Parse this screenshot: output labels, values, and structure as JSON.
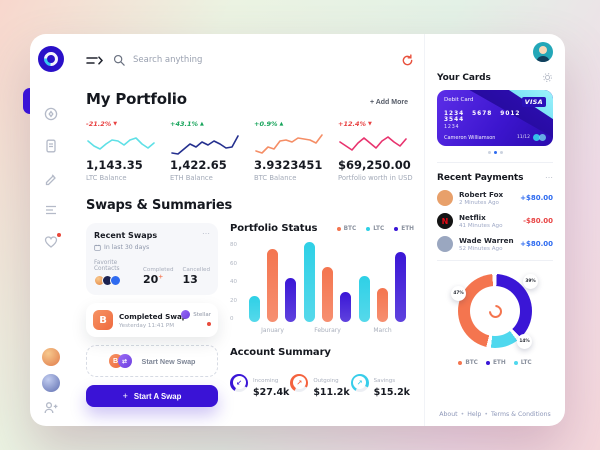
{
  "theme": {
    "accent": "#3a13d6",
    "cyan": "#2ed0e6",
    "orange": "#f4754f",
    "crimson": "#e8336e"
  },
  "topbar": {
    "search_placeholder": "Search anything"
  },
  "portfolio": {
    "title": "My Portfolio",
    "add_more_label": "+ Add More",
    "cards": [
      {
        "change": "-21.2%",
        "arrow": "▼",
        "change_color": "#e84141",
        "value": "1,143.35",
        "label": "LTC Balance",
        "spark_color": "#5fe0e6",
        "spark": "2,9 8,14 14,17 20,12 26,8 32,9 38,13 44,8 50,6 56,12 62,16 68,11"
      },
      {
        "change": "+43.1%",
        "arrow": "▲",
        "change_color": "#17a45b",
        "value": "1,422.65",
        "label": "ETH Balance",
        "spark_color": "#25308f",
        "spark": "2,21 8,22 14,17 20,12 26,15 32,10 38,13 44,9 50,12 56,16 62,15 68,4"
      },
      {
        "change": "+0.9%",
        "arrow": "▲",
        "change_color": "#17a45b",
        "value": "3.9323451",
        "label": "BTC Balance",
        "spark_color": "#f58e66",
        "spark": "2,19 8,21 14,15 20,17 26,9 32,8 38,10 44,6 50,7 56,8 62,11 68,3"
      },
      {
        "change": "+12.4%",
        "arrow": "▼",
        "change_color": "#e84141",
        "value": "$69,250.00",
        "label": "Portfolio worth in USD",
        "spark_color": "#e8336e",
        "spark": "2,10 8,14 14,18 20,11 26,6 32,11 38,16 44,9 50,5 56,10 62,14 68,7"
      }
    ]
  },
  "swaps": {
    "title": "Swaps & Summaries",
    "recent_card": {
      "title": "Recent Swaps",
      "menu": "⋯",
      "subtitle": "In last 30 days",
      "favorites_label": "Favorite Contacts",
      "stats": [
        {
          "label": "Completed",
          "value": "20",
          "suffix": "+"
        },
        {
          "label": "Cancelled",
          "value": "13",
          "suffix": ""
        }
      ]
    },
    "completed_card": {
      "title": "Completed Swap",
      "time": "Yesterday 11:41 PM",
      "network": "Stellar",
      "coin_symbol": "B"
    },
    "start_new_label": "Start New Swap",
    "pair_symbol": "B",
    "pair_symbol2": "⇄",
    "cta_plus": "+",
    "cta_label": "Start A Swap"
  },
  "account_summary": {
    "title": "Account Summary",
    "items": [
      {
        "label": "Incoming",
        "value": "$27.4k",
        "color": "#3a16d6",
        "arrow": "↙"
      },
      {
        "label": "Outgoing",
        "value": "$11.2k",
        "color": "#f4623e",
        "arrow": "↗"
      },
      {
        "label": "Savings",
        "value": "$15.2k",
        "color": "#38cdea",
        "arrow": "↗"
      }
    ]
  },
  "chart_data": [
    {
      "id": "portfolio-status",
      "type": "bar",
      "title": "Portfolio Status",
      "categories": [
        "January",
        "Feburary",
        "March"
      ],
      "series": [
        {
          "name": "LTC",
          "color": "#2ed0e6",
          "values": [
            26,
            80,
            46
          ]
        },
        {
          "name": "BTC",
          "color": "#f4754f",
          "values": [
            73,
            55,
            34
          ]
        },
        {
          "name": "ETH",
          "color": "#3a16d6",
          "values": [
            44,
            30,
            70
          ]
        }
      ],
      "legend": [
        {
          "name": "BTC",
          "color": "#f4754f"
        },
        {
          "name": "LTC",
          "color": "#2ed0e6"
        },
        {
          "name": "ETH",
          "color": "#3a16d6"
        }
      ],
      "ylim": [
        0,
        80
      ],
      "yticks": [
        0,
        20,
        40,
        60,
        80
      ],
      "grid": false,
      "legend_position": "top-right"
    },
    {
      "id": "holdings-donut",
      "type": "pie",
      "slices": [
        {
          "name": "BTC",
          "value": 47,
          "color": "#f4754f"
        },
        {
          "name": "ETH",
          "value": 39,
          "color": "#3a16d6"
        },
        {
          "name": "LTC",
          "value": 14,
          "color": "#4fd8ee"
        }
      ],
      "legend_position": "bottom"
    }
  ],
  "right_panel": {
    "your_cards_title": "Your Cards",
    "card": {
      "type_label": "Debit Card",
      "brand": "VISA",
      "number": "1234 5678 9012 3544",
      "number_line2": "1234",
      "holder": "Cameron Williamson",
      "expiry": "11/12"
    },
    "payments": {
      "title": "Recent Payments",
      "menu": "⋯",
      "items": [
        {
          "name": "Robert Fox",
          "time": "2 Minutes Ago",
          "amount": "+$80.00",
          "amount_color": "#2e6bf0",
          "avatar_color": "#e8a06a",
          "avatar_letter": "",
          "avatar_letter_color": ""
        },
        {
          "name": "Netflix",
          "time": "41 Minutes Ago",
          "amount": "-$80.00",
          "amount_color": "#e84545",
          "avatar_color": "#141414",
          "avatar_letter": "N",
          "avatar_letter_color": "#e50914"
        },
        {
          "name": "Wade Warren",
          "time": "52 Minutes Ago",
          "amount": "+$80.00",
          "amount_color": "#2e6bf0",
          "avatar_color": "#9aa7c0",
          "avatar_letter": "",
          "avatar_letter_color": ""
        }
      ]
    },
    "footer_links": [
      "About",
      "Help",
      "Terms & Conditions"
    ],
    "footer_separator": "•"
  }
}
